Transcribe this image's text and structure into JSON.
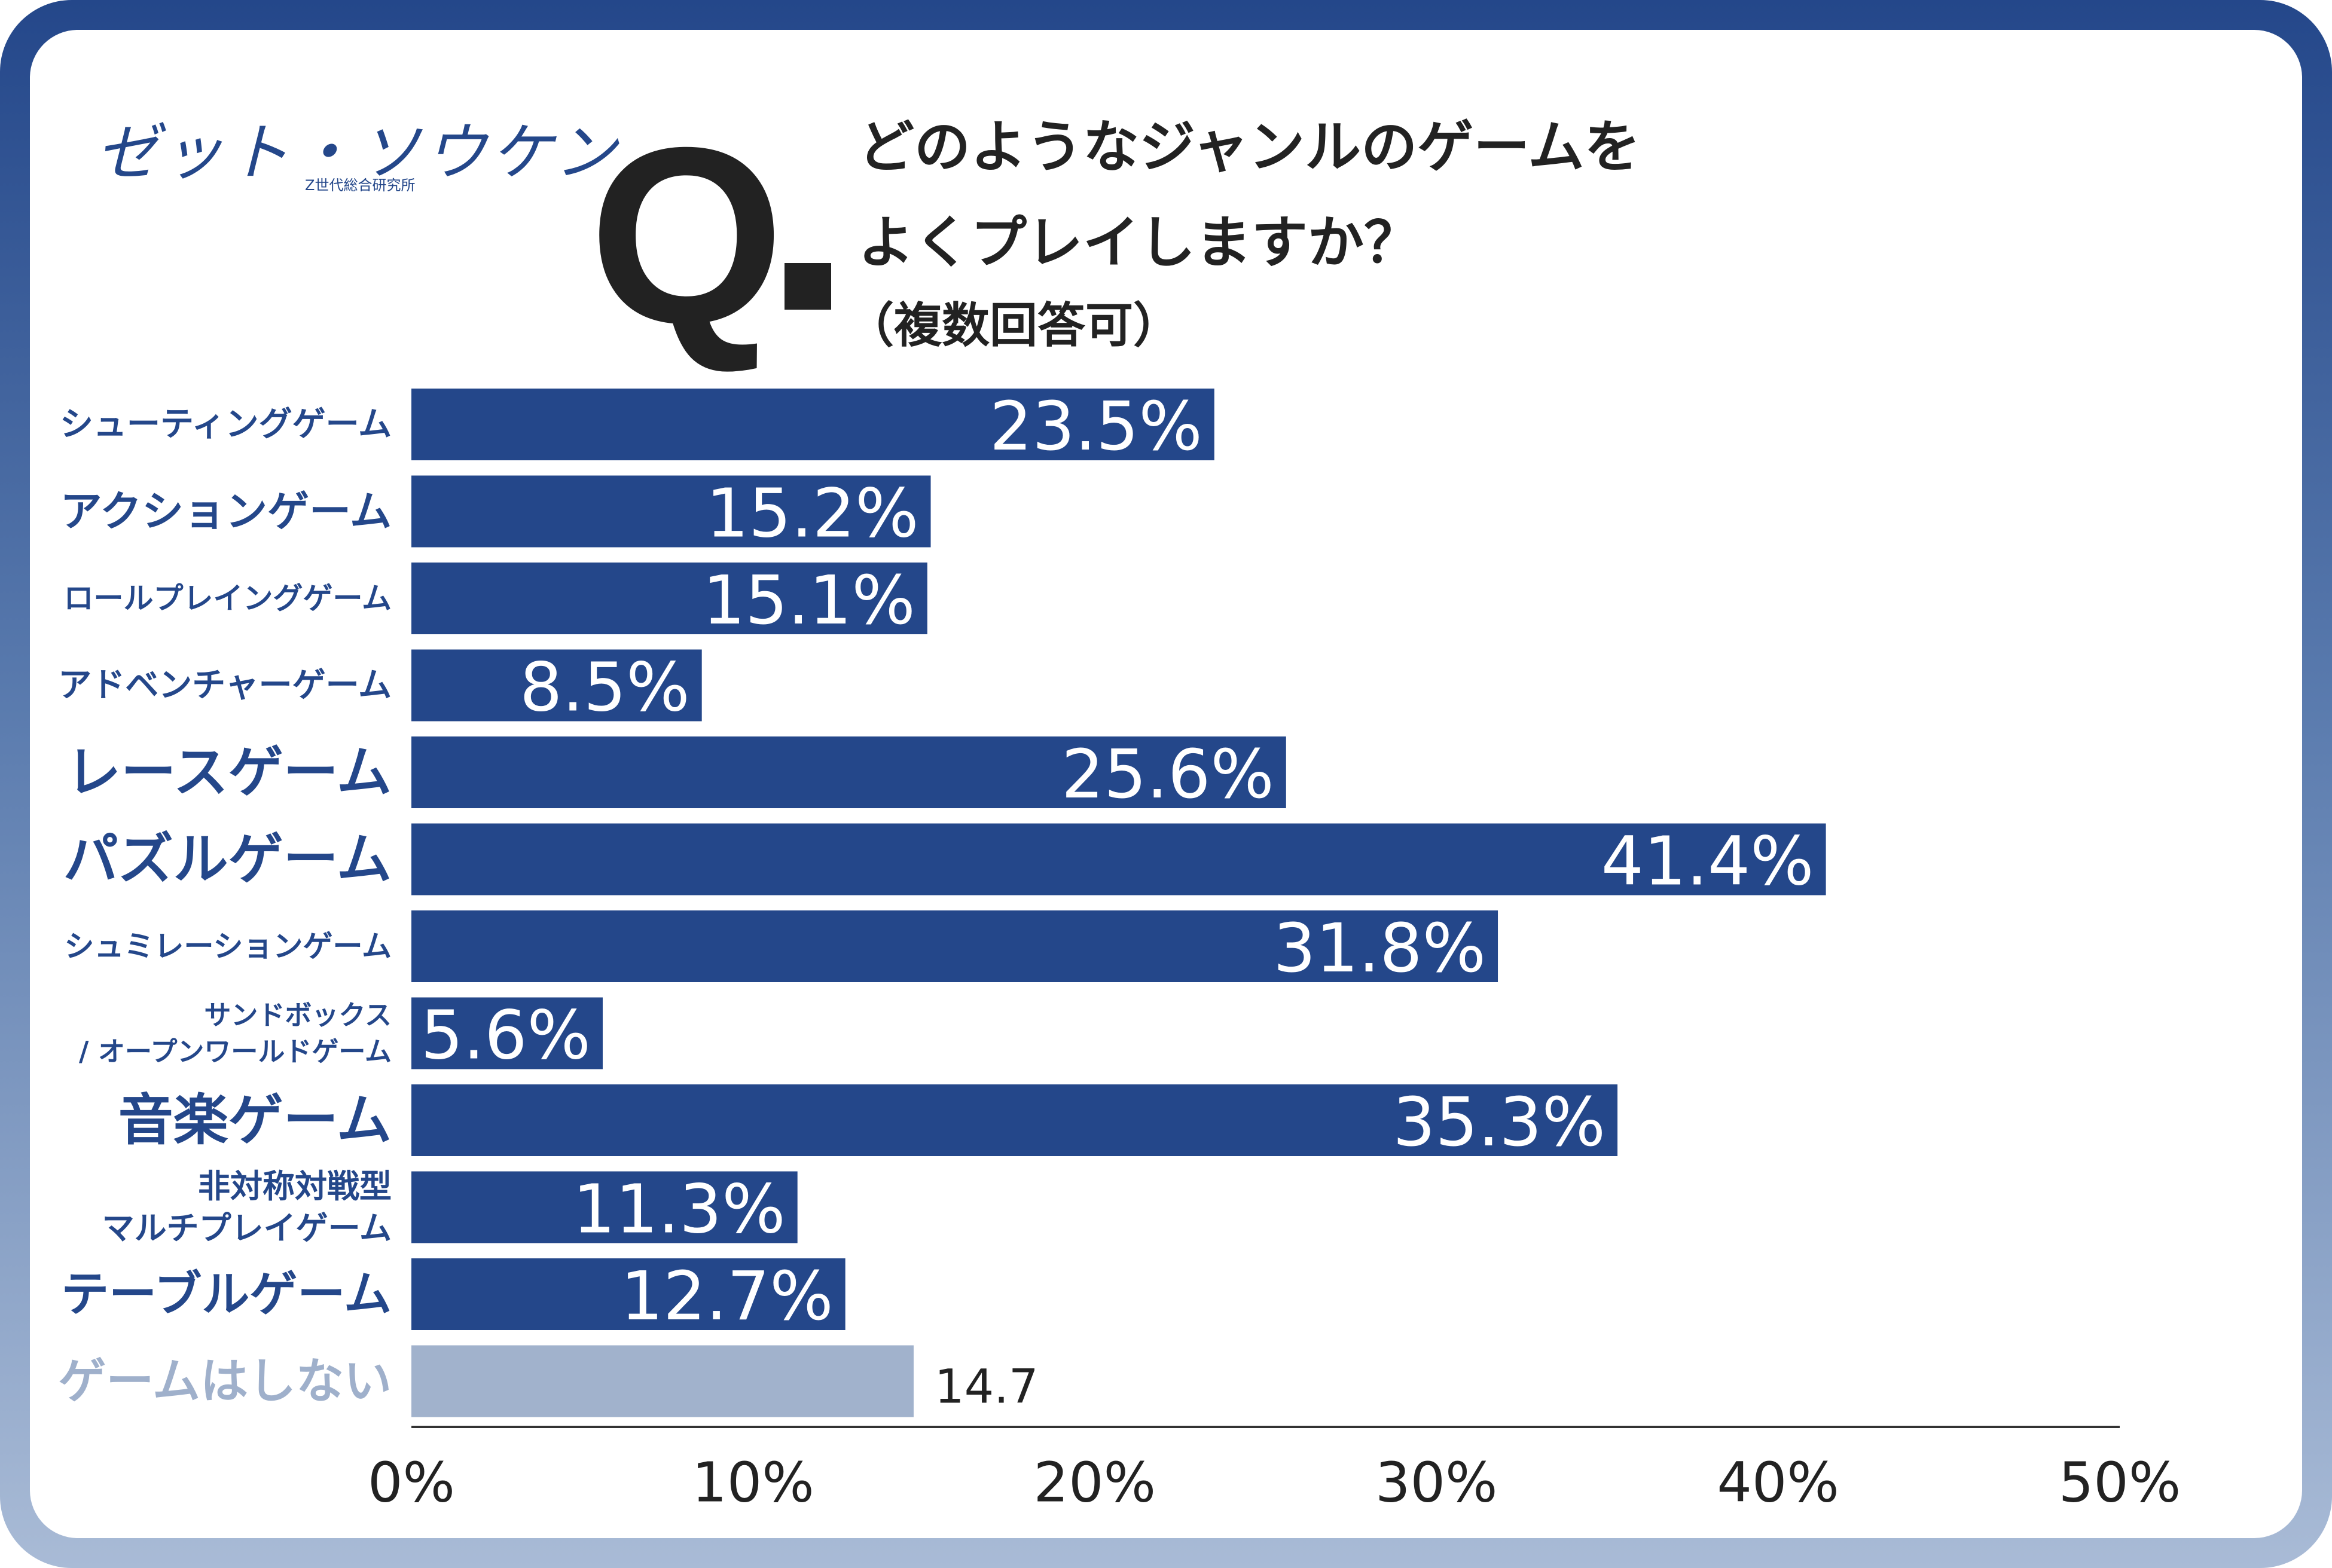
{
  "brand": {
    "logo": "ゼット・ソウケン",
    "logo_sub": "Z世代総合研究所"
  },
  "question": {
    "mark": "Q",
    "line1": "どのようなジャンルのゲームを",
    "line2": "よくプレイしますか？",
    "sub": "（複数回答可）"
  },
  "colors": {
    "bar": "#24478a",
    "bar_muted": "#a1b2cc",
    "label": "#24478a",
    "label_muted": "#9fb0cb",
    "axis": "#333333"
  },
  "chart_data": {
    "type": "bar",
    "orientation": "horizontal",
    "categories": [
      [
        "シューティングゲーム"
      ],
      [
        "アクションゲーム"
      ],
      [
        "ロールプレイングゲーム"
      ],
      [
        "アドベンチャーゲーム"
      ],
      [
        "レースゲーム"
      ],
      [
        "パズルゲーム"
      ],
      [
        "シュミレーションゲーム"
      ],
      [
        "サンドボックス",
        "/ オープンワールドゲーム"
      ],
      [
        "音楽ゲーム"
      ],
      [
        "非対称対戦型",
        "マルチプレイゲーム"
      ],
      [
        "テーブルゲーム"
      ],
      [
        "ゲームはしない"
      ]
    ],
    "values": [
      23.5,
      15.2,
      15.1,
      8.5,
      25.6,
      41.4,
      31.8,
      5.6,
      35.3,
      11.3,
      12.7,
      14.7
    ],
    "value_labels": [
      "23.5%",
      "15.2%",
      "15.1%",
      "8.5%",
      "25.6%",
      "41.4%",
      "31.8%",
      "5.6%",
      "35.3%",
      "11.3%",
      "12.7%",
      "14.7"
    ],
    "muted": [
      false,
      false,
      false,
      false,
      false,
      false,
      false,
      false,
      false,
      false,
      false,
      true
    ],
    "xlim": [
      0,
      50
    ],
    "xticks": [
      "0%",
      "10%",
      "20%",
      "30%",
      "40%",
      "50%"
    ],
    "grid": false,
    "legend": "none"
  }
}
